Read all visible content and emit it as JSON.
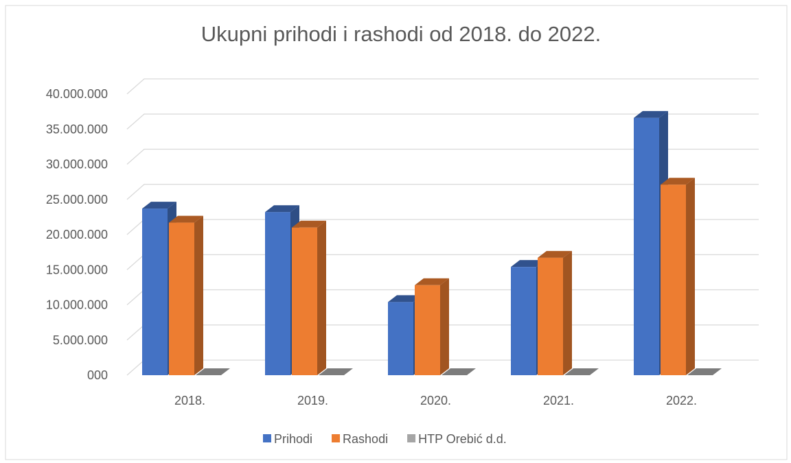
{
  "chart_data": {
    "type": "bar3d",
    "title": "Ukupni prihodi i rashodi od 2018. do 2022.",
    "categories": [
      "2018.",
      "2019.",
      "2020.",
      "2021.",
      "2022."
    ],
    "series": [
      {
        "name": "Prihodi",
        "color": "#4472c4",
        "values": [
          23700000,
          23200000,
          10400000,
          15400000,
          36600000
        ]
      },
      {
        "name": "Rashodi",
        "color": "#ed7d31",
        "values": [
          21700000,
          21000000,
          12800000,
          16700000,
          27100000
        ]
      },
      {
        "name": "HTP Orebić d.d.",
        "color": "#a5a5a5",
        "values": [
          0,
          0,
          0,
          0,
          0
        ]
      }
    ],
    "ylim": [
      0,
      40000000
    ],
    "yticks": [
      {
        "value": 0,
        "label": "000"
      },
      {
        "value": 5000000,
        "label": "5.000.000"
      },
      {
        "value": 10000000,
        "label": "10.000.000"
      },
      {
        "value": 15000000,
        "label": "15.000.000"
      },
      {
        "value": 20000000,
        "label": "20.000.000"
      },
      {
        "value": 25000000,
        "label": "25.000.000"
      },
      {
        "value": 30000000,
        "label": "30.000.000"
      },
      {
        "value": 35000000,
        "label": "35.000.000"
      },
      {
        "value": 40000000,
        "label": "40.000.000"
      }
    ],
    "grid": true,
    "legend": "bottom"
  }
}
